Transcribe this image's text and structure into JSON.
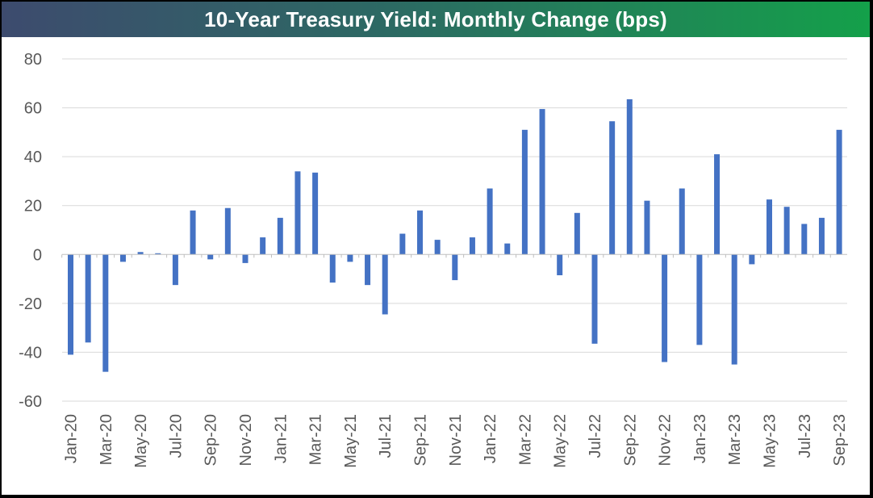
{
  "chart_data": {
    "type": "bar",
    "title": "10-Year Treasury Yield: Monthly Change (bps)",
    "xlabel": "",
    "ylabel": "",
    "ylim": [
      -60,
      80
    ],
    "yticks": [
      80,
      60,
      40,
      20,
      0,
      -20,
      -40,
      -60
    ],
    "grid": true,
    "legend": "none",
    "colors": {
      "bar": "#4472c4",
      "grid": "#d9d9d9",
      "axis": "#bfbfbf",
      "tick_text": "#595959",
      "title_text": "#ffffff",
      "title_gradient_start": "#3d4b6e",
      "title_gradient_end": "#14a04a"
    },
    "categories": [
      "Jan-20",
      "Feb-20",
      "Mar-20",
      "Apr-20",
      "May-20",
      "Jun-20",
      "Jul-20",
      "Aug-20",
      "Sep-20",
      "Oct-20",
      "Nov-20",
      "Dec-20",
      "Jan-21",
      "Feb-21",
      "Mar-21",
      "Apr-21",
      "May-21",
      "Jun-21",
      "Jul-21",
      "Aug-21",
      "Sep-21",
      "Oct-21",
      "Nov-21",
      "Dec-21",
      "Jan-22",
      "Feb-22",
      "Mar-22",
      "Apr-22",
      "May-22",
      "Jun-22",
      "Jul-22",
      "Aug-22",
      "Sep-22",
      "Oct-22",
      "Nov-22",
      "Dec-22",
      "Jan-23",
      "Feb-23",
      "Mar-23",
      "Apr-23",
      "May-23",
      "Jun-23",
      "Jul-23",
      "Aug-23",
      "Sep-23"
    ],
    "x_tick_labels": [
      "Jan-20",
      "Mar-20",
      "May-20",
      "Jul-20",
      "Sep-20",
      "Nov-20",
      "Jan-21",
      "Mar-21",
      "May-21",
      "Jul-21",
      "Sep-21",
      "Nov-21",
      "Jan-22",
      "Mar-22",
      "May-22",
      "Jul-22",
      "Sep-22",
      "Nov-22",
      "Jan-23",
      "Mar-23",
      "May-23",
      "Jul-23",
      "Sep-23"
    ],
    "series": [
      {
        "values": [
          -41,
          -36,
          -48,
          -3,
          1,
          0.5,
          -12.5,
          18,
          -2,
          19,
          -3.5,
          7,
          15,
          34,
          33.5,
          -11.5,
          -3,
          -12.5,
          -24.5,
          8.5,
          18,
          6,
          -10.5,
          7,
          27,
          4.5,
          51,
          59.5,
          -8.5,
          17,
          -36.5,
          54.5,
          63.5,
          22,
          -44,
          27,
          -37,
          41,
          -45,
          -4,
          22.5,
          19.5,
          12.5,
          15,
          51
        ]
      }
    ]
  }
}
